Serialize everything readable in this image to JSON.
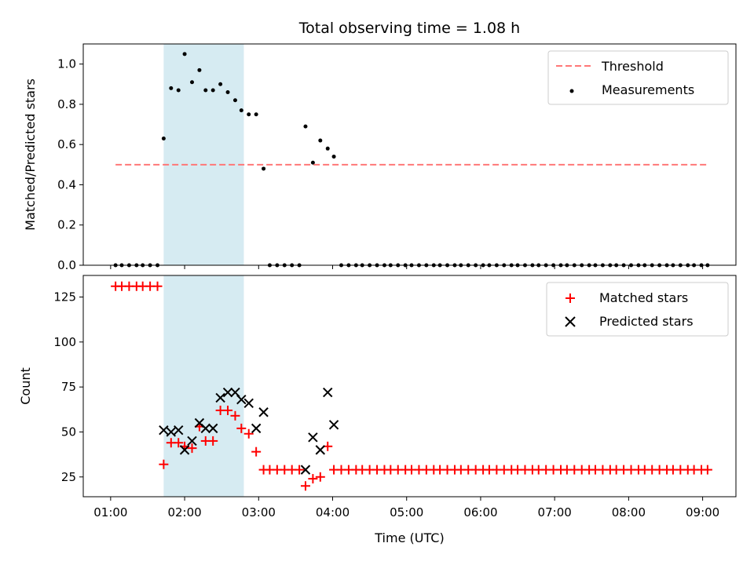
{
  "chart_data": [
    {
      "panel": "top",
      "type": "scatter",
      "title": "Total observing time = 1.08 h",
      "ylabel": "Matched/Predicted stars",
      "xlabel": "",
      "xlim_hours": [
        0.63,
        9.45
      ],
      "ylim": [
        0.0,
        1.1
      ],
      "yticks": [
        0.0,
        0.2,
        0.4,
        0.6,
        0.8,
        1.0
      ],
      "ytick_labels": [
        "0.0",
        "0.2",
        "0.4",
        "0.6",
        "0.8",
        "1.0"
      ],
      "grid": false,
      "legend_position": "upper right",
      "shaded_interval": [
        "01:43",
        "02:48"
      ],
      "shaded_color": "#add8e6",
      "threshold": {
        "name": "Threshold",
        "value": 0.5,
        "x_range": [
          "01:04",
          "09:04"
        ],
        "color": "#ff7777",
        "style": "dashed"
      },
      "measurements": {
        "name": "Measurements",
        "color": "#000000",
        "x": [
          "01:04",
          "01:09",
          "01:15",
          "01:21",
          "01:26",
          "01:32",
          "01:38",
          "01:43",
          "01:49",
          "01:55",
          "02:00",
          "02:06",
          "02:12",
          "02:17",
          "02:23",
          "02:29",
          "02:35",
          "02:41",
          "02:46",
          "02:52",
          "02:58",
          "03:04",
          "03:09",
          "03:15",
          "03:21",
          "03:27",
          "03:33",
          "03:38",
          "03:44",
          "03:50",
          "03:56",
          "04:01",
          "04:07",
          "04:13",
          "04:19",
          "04:24",
          "04:30",
          "04:36",
          "04:42",
          "04:47",
          "04:53",
          "04:59",
          "05:04",
          "05:10",
          "05:16",
          "05:22",
          "05:27",
          "05:33",
          "05:39",
          "05:44",
          "05:50",
          "05:56",
          "06:02",
          "06:07",
          "06:13",
          "06:19",
          "06:25",
          "06:30",
          "06:36",
          "06:42",
          "06:47",
          "06:53",
          "06:59",
          "07:05",
          "07:10",
          "07:16",
          "07:22",
          "07:28",
          "07:33",
          "07:39",
          "07:45",
          "07:50",
          "07:56",
          "08:02",
          "08:08",
          "08:13",
          "08:19",
          "08:25",
          "08:31",
          "08:36",
          "08:42",
          "08:48",
          "08:53",
          "08:59",
          "09:04"
        ],
        "y": [
          0,
          0,
          0,
          0,
          0,
          0,
          0,
          0.63,
          0.88,
          0.87,
          1.05,
          0.91,
          0.97,
          0.87,
          0.87,
          0.9,
          0.86,
          0.82,
          0.77,
          0.75,
          0.75,
          0.48,
          0,
          0,
          0,
          0,
          0,
          0.69,
          0.51,
          0.62,
          0.58,
          0.54,
          0,
          0,
          0,
          0,
          0,
          0,
          0,
          0,
          0,
          0,
          0,
          0,
          0,
          0,
          0,
          0,
          0,
          0,
          0,
          0,
          0,
          0,
          0,
          0,
          0,
          0,
          0,
          0,
          0,
          0,
          0,
          0,
          0,
          0,
          0,
          0,
          0,
          0,
          0,
          0,
          0,
          0,
          0,
          0,
          0,
          0,
          0,
          0,
          0,
          0,
          0,
          0,
          0
        ]
      }
    },
    {
      "panel": "bottom",
      "type": "scatter",
      "title": "",
      "xlabel": "Time (UTC)",
      "ylabel": "Count",
      "xlim_hours": [
        0.63,
        9.45
      ],
      "ylim": [
        14,
        137
      ],
      "xticks": [
        "01:00",
        "02:00",
        "03:00",
        "04:00",
        "05:00",
        "06:00",
        "07:00",
        "08:00",
        "09:00"
      ],
      "yticks": [
        25,
        50,
        75,
        100,
        125
      ],
      "ytick_labels": [
        "25",
        "50",
        "75",
        "100",
        "125"
      ],
      "grid": false,
      "legend_position": "upper right",
      "shaded_interval": [
        "01:43",
        "02:48"
      ],
      "shaded_color": "#add8e6",
      "series": [
        {
          "name": "Matched stars",
          "marker": "plus",
          "color": "#ff0000",
          "x": [
            "01:04",
            "01:09",
            "01:15",
            "01:21",
            "01:26",
            "01:32",
            "01:38",
            "01:43",
            "01:49",
            "01:55",
            "02:00",
            "02:06",
            "02:12",
            "02:17",
            "02:23",
            "02:29",
            "02:35",
            "02:41",
            "02:46",
            "02:52",
            "02:58",
            "03:04",
            "03:09",
            "03:15",
            "03:21",
            "03:27",
            "03:33",
            "03:38",
            "03:44",
            "03:50",
            "03:56",
            "04:01",
            "04:07",
            "04:13",
            "04:19",
            "04:24",
            "04:30",
            "04:36",
            "04:42",
            "04:47",
            "04:53",
            "04:59",
            "05:04",
            "05:10",
            "05:16",
            "05:22",
            "05:27",
            "05:33",
            "05:39",
            "05:44",
            "05:50",
            "05:56",
            "06:02",
            "06:07",
            "06:13",
            "06:19",
            "06:25",
            "06:30",
            "06:36",
            "06:42",
            "06:47",
            "06:53",
            "06:59",
            "07:05",
            "07:10",
            "07:16",
            "07:22",
            "07:28",
            "07:33",
            "07:39",
            "07:45",
            "07:50",
            "07:56",
            "08:02",
            "08:08",
            "08:13",
            "08:19",
            "08:25",
            "08:31",
            "08:36",
            "08:42",
            "08:48",
            "08:53",
            "08:59",
            "09:04"
          ],
          "y": [
            131,
            131,
            131,
            131,
            131,
            131,
            131,
            32,
            44,
            44,
            42,
            41,
            53,
            45,
            45,
            62,
            62,
            59,
            52,
            49,
            39,
            29,
            29,
            29,
            29,
            29,
            29,
            20,
            24,
            25,
            42,
            29,
            29,
            29,
            29,
            29,
            29,
            29,
            29,
            29,
            29,
            29,
            29,
            29,
            29,
            29,
            29,
            29,
            29,
            29,
            29,
            29,
            29,
            29,
            29,
            29,
            29,
            29,
            29,
            29,
            29,
            29,
            29,
            29,
            29,
            29,
            29,
            29,
            29,
            29,
            29,
            29,
            29,
            29,
            29,
            29,
            29,
            29,
            29,
            29,
            29,
            29,
            29,
            29,
            29
          ]
        },
        {
          "name": "Predicted stars",
          "marker": "x",
          "color": "#000000",
          "x": [
            "01:43",
            "01:49",
            "01:55",
            "02:00",
            "02:06",
            "02:12",
            "02:17",
            "02:23",
            "02:29",
            "02:35",
            "02:41",
            "02:46",
            "02:52",
            "02:58",
            "03:04",
            "03:38",
            "03:44",
            "03:50",
            "03:56",
            "04:01"
          ],
          "y": [
            51,
            50,
            51,
            40,
            45,
            55,
            52,
            52,
            69,
            72,
            72,
            68,
            66,
            52,
            61,
            29,
            47,
            40,
            72,
            54
          ]
        }
      ]
    }
  ]
}
